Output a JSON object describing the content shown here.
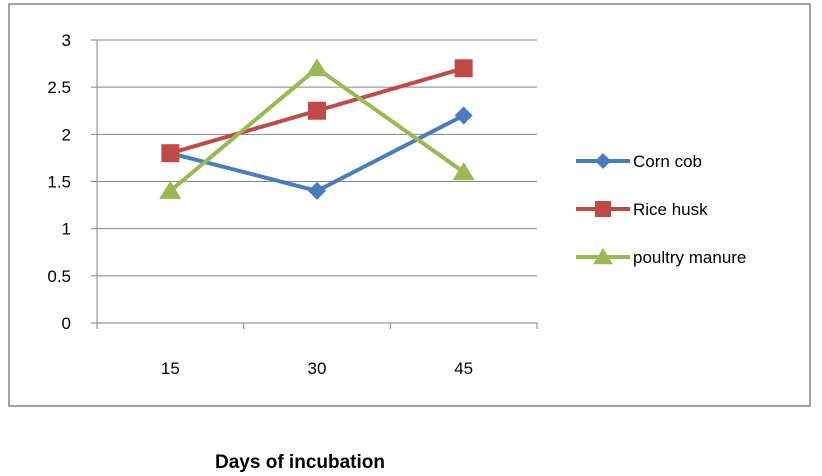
{
  "chart_data": {
    "type": "line",
    "categories": [
      "15",
      "30",
      "45"
    ],
    "series": [
      {
        "name": "Corn cob",
        "values": [
          1.8,
          1.4,
          2.2
        ],
        "color": "#4a7ebb",
        "marker": "diamond"
      },
      {
        "name": "Rice husk",
        "values": [
          1.8,
          2.25,
          2.7
        ],
        "color": "#be4b48",
        "marker": "square"
      },
      {
        "name": "poultry manure",
        "values": [
          1.4,
          2.7,
          1.6
        ],
        "color": "#98b954",
        "marker": "triangle"
      }
    ],
    "ylim": [
      0,
      3
    ],
    "yticks": [
      "0",
      "0.5",
      "1",
      "1.5",
      "2",
      "2.5",
      "3"
    ],
    "xlabel": "Days of incubation",
    "ylabel": "",
    "title": "",
    "grid": "horizontal",
    "legend": "right"
  }
}
